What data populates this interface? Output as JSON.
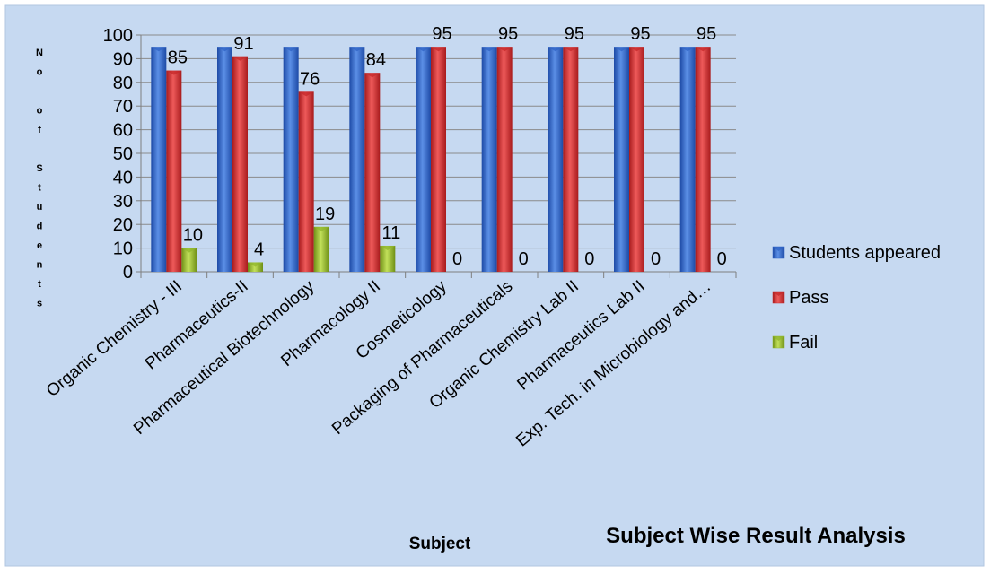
{
  "chart_data": {
    "type": "bar",
    "title": "Subject Wise Result Analysis",
    "xlabel": "Subject",
    "ylabel": "No of Students",
    "ylim": [
      0,
      100
    ],
    "yticks": [
      0,
      10,
      20,
      30,
      40,
      50,
      60,
      70,
      80,
      90,
      100
    ],
    "grid": true,
    "legend_position": "right",
    "categories": [
      "Organic Chemistry - III",
      "Pharmaceutics-II",
      "Pharmaceutical Biotechnology",
      "Pharmacology II",
      "Cosmeticology",
      "Packaging of Pharmaceuticals",
      "Organic Chemistry Lab II",
      "Pharmaceutics Lab II",
      "Exp. Tech. in Microbiology and…"
    ],
    "series": [
      {
        "name": "Students appeared",
        "color": "#2f63c4",
        "values": [
          95,
          95,
          95,
          95,
          95,
          95,
          95,
          95,
          95
        ],
        "labels": [
          "",
          "",
          "",
          "",
          "",
          "",
          "",
          "",
          ""
        ]
      },
      {
        "name": "Pass",
        "color": "#c5282a",
        "values": [
          85,
          91,
          76,
          84,
          95,
          95,
          95,
          95,
          95
        ],
        "labels": [
          "85",
          "91",
          "76",
          "84",
          "95",
          "95",
          "95",
          "95",
          "95"
        ]
      },
      {
        "name": "Fail",
        "color": "#8fb52c",
        "values": [
          10,
          4,
          19,
          11,
          0,
          0,
          0,
          0,
          0
        ],
        "labels": [
          "10",
          "4",
          "19",
          "11",
          "0",
          "0",
          "0",
          "0",
          "0"
        ]
      }
    ]
  }
}
